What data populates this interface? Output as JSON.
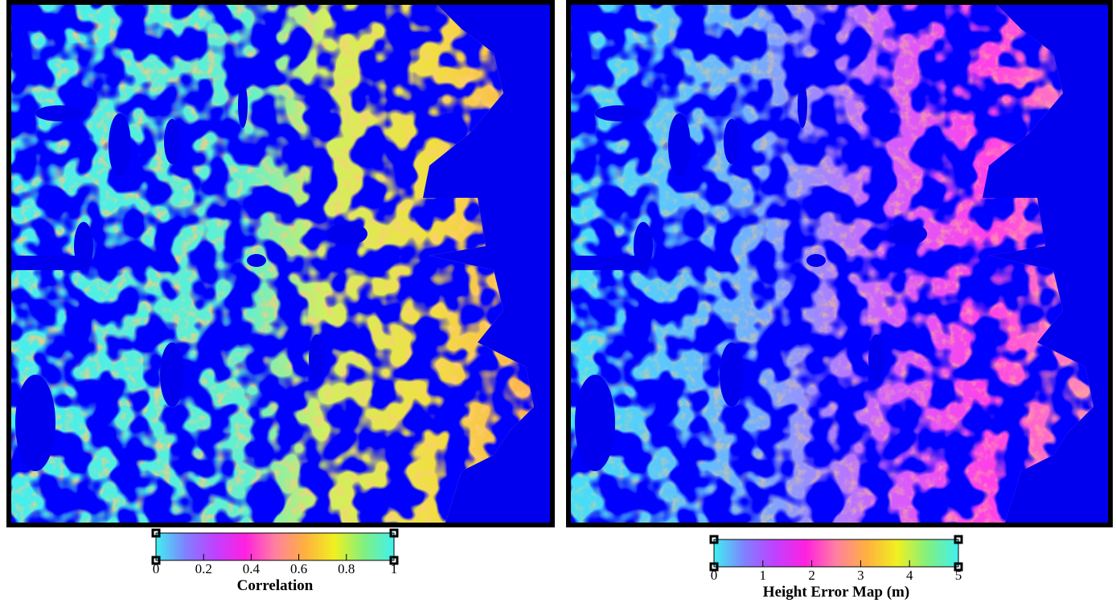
{
  "chart_data": [
    {
      "type": "heatmap",
      "colorbar_label": "Correlation",
      "xlim": [
        0,
        1
      ],
      "xticks": [
        0,
        0.2,
        0.4,
        0.6,
        0.8,
        1
      ],
      "colormap": [
        "#40f0f0",
        "#8080ff",
        "#c040ff",
        "#ff20e0",
        "#ff80a0",
        "#ffb040",
        "#f0f020",
        "#80f080",
        "#40f0f0"
      ]
    },
    {
      "type": "heatmap",
      "colorbar_label": "Height Error Map (m)",
      "xlim": [
        0,
        5
      ],
      "xticks": [
        0,
        1,
        2,
        3,
        4,
        5
      ],
      "colormap": [
        "#40f0f0",
        "#8080ff",
        "#c040ff",
        "#ff20e0",
        "#ff80a0",
        "#ffb040",
        "#f0f020",
        "#80f080",
        "#40f0f0"
      ]
    }
  ]
}
